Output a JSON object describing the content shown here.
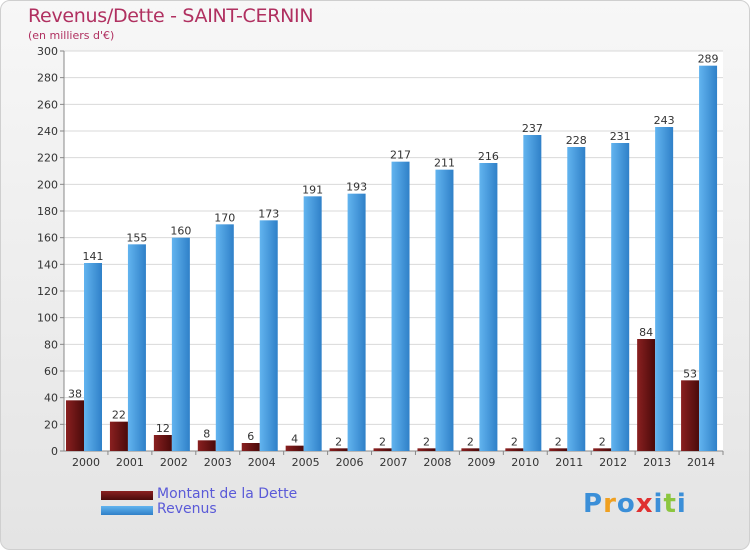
{
  "chart_data": {
    "type": "bar",
    "title": "Revenus/Dette - SAINT-CERNIN",
    "subtitle": "(en milliers d'€)",
    "xlabel": "",
    "ylabel": "",
    "ylim": [
      0,
      300
    ],
    "yticks": [
      0,
      20,
      40,
      60,
      80,
      100,
      120,
      140,
      160,
      180,
      200,
      220,
      240,
      260,
      280,
      300
    ],
    "grid": true,
    "categories": [
      "2000",
      "2001",
      "2002",
      "2003",
      "2004",
      "2005",
      "2006",
      "2007",
      "2008",
      "2009",
      "2010",
      "2011",
      "2012",
      "2013",
      "2014"
    ],
    "series": [
      {
        "name": "Montant de la Dette",
        "color": "#7b1a1a",
        "values": [
          38,
          22,
          12,
          8,
          6,
          4,
          2,
          2,
          2,
          2,
          2,
          2,
          2,
          84,
          53
        ]
      },
      {
        "name": "Revenus",
        "color": "#4fa3e3",
        "values": [
          141,
          155,
          160,
          170,
          173,
          191,
          193,
          217,
          211,
          216,
          237,
          228,
          231,
          243,
          289
        ]
      }
    ],
    "legend_position": "bottom-left"
  },
  "logo": {
    "letters": [
      "P",
      "r",
      "o",
      "x",
      "i",
      "t",
      "i"
    ],
    "colors": [
      "#3b8fd8",
      "#f0a020",
      "#3b8fd8",
      "#e03030",
      "#3b8fd8",
      "#8cc63f",
      "#3b8fd8"
    ]
  }
}
